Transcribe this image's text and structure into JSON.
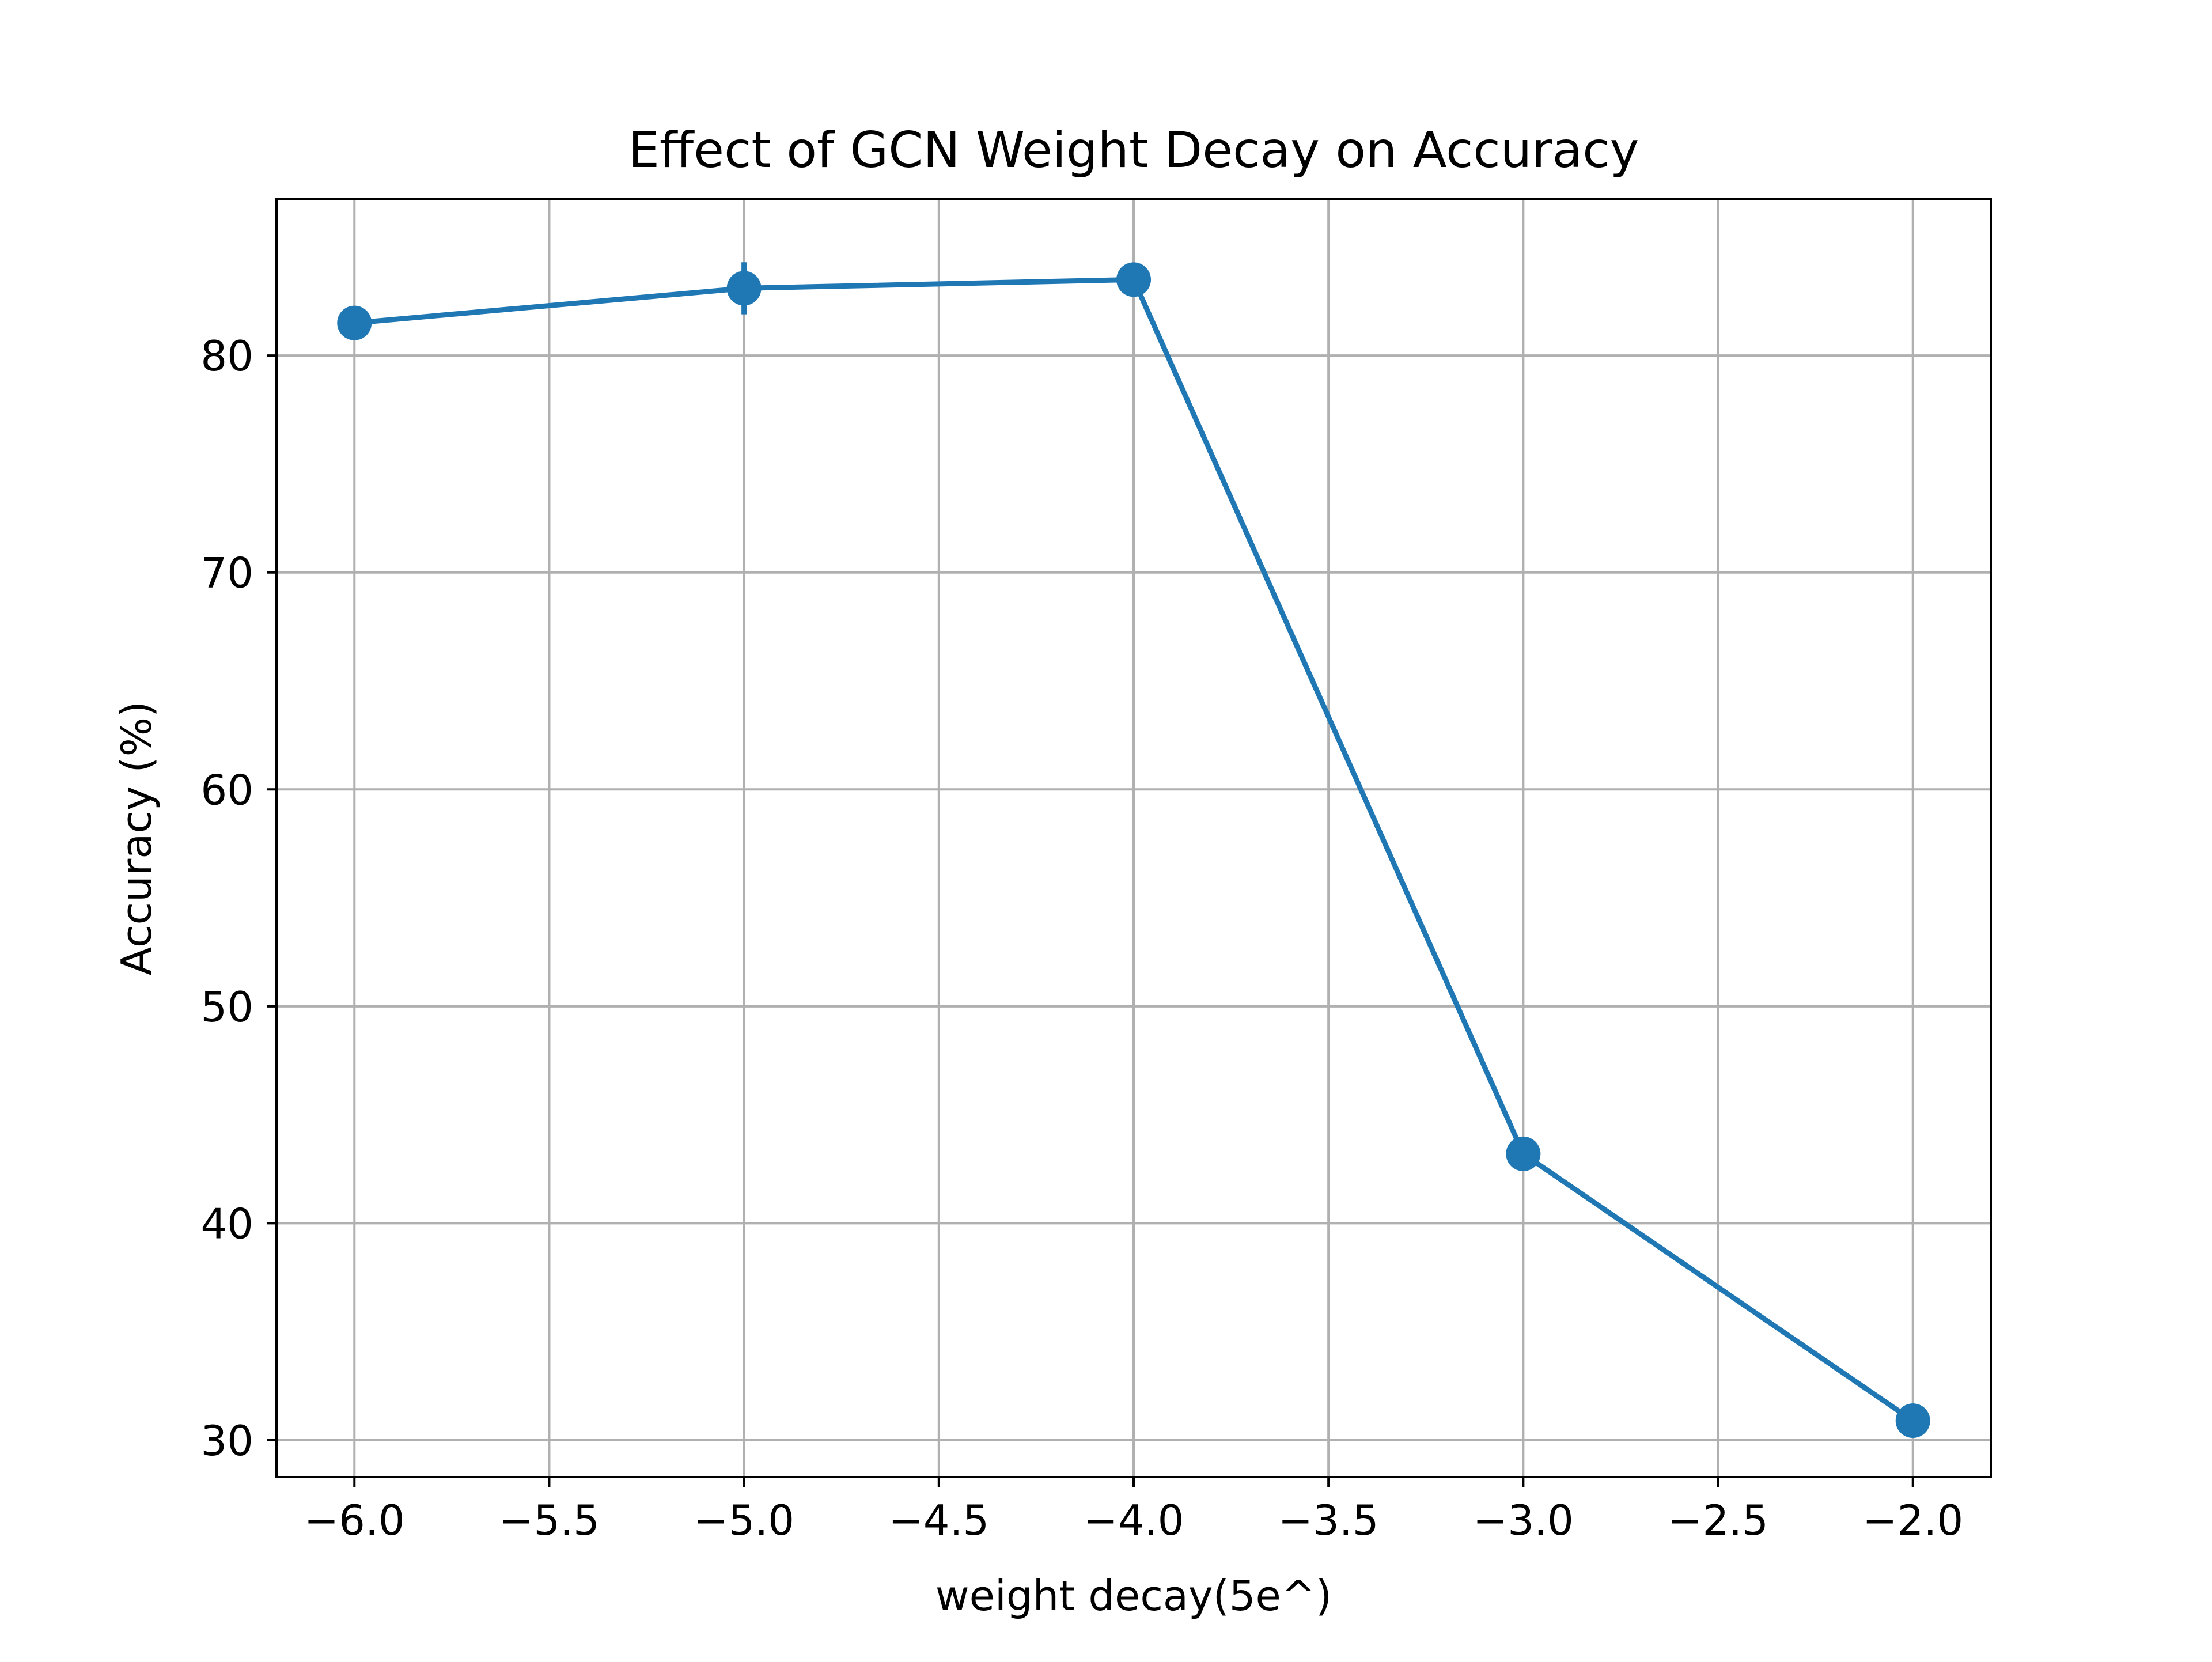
{
  "chart_data": {
    "type": "line",
    "title": "Effect of GCN Weight Decay on Accuracy",
    "xlabel": "weight decay(5e^)",
    "ylabel": "Accuracy (%)",
    "xlim": [
      -6.2,
      -1.8
    ],
    "ylim": [
      28.3,
      87.2
    ],
    "x_ticks": [
      -6.0,
      -5.5,
      -5.0,
      -4.5,
      -4.0,
      -3.5,
      -3.0,
      -2.5,
      -2.0
    ],
    "x_tick_labels": [
      "−6.0",
      "−5.5",
      "−5.0",
      "−4.5",
      "−4.0",
      "−3.5",
      "−3.0",
      "−2.5",
      "−2.0"
    ],
    "y_ticks": [
      30,
      40,
      50,
      60,
      70,
      80
    ],
    "y_tick_labels": [
      "30",
      "40",
      "50",
      "60",
      "70",
      "80"
    ],
    "grid": true,
    "series": [
      {
        "x": [
          -6,
          -5,
          -4,
          -3,
          -2
        ],
        "y": [
          81.5,
          83.1,
          83.5,
          43.2,
          30.9
        ],
        "yerr": [
          0.3,
          1.2,
          0.3,
          0.3,
          0.3
        ],
        "color": "#1f77b4"
      }
    ]
  }
}
